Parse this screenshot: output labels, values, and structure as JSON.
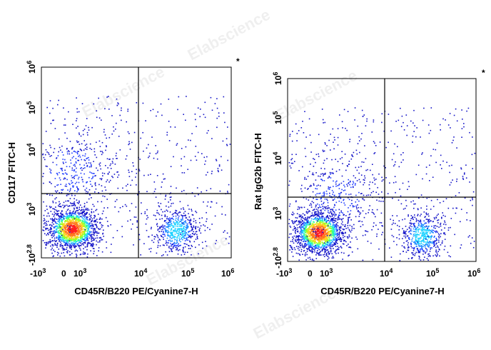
{
  "watermark": "Elabscience",
  "chart_data": [
    {
      "type": "scatter",
      "plot_style": "pseudocolor density dot plot (flow cytometry)",
      "title": "",
      "xlabel": "CD45R/B220 PE/Cyanine7-H",
      "ylabel": "CD117 FITC-H",
      "x_scale": "biexponential",
      "y_scale": "biexponential",
      "x_ticks": [
        {
          "base": "-10",
          "exp": "3",
          "value": -1000
        },
        {
          "base": "0",
          "exp": "",
          "value": 0
        },
        {
          "base": "10",
          "exp": "3",
          "value": 1000
        },
        {
          "base": "10",
          "exp": "4",
          "value": 10000
        },
        {
          "base": "10",
          "exp": "5",
          "value": 100000
        },
        {
          "base": "10",
          "exp": "6",
          "value": 1000000
        }
      ],
      "y_ticks": [
        {
          "base": "-10",
          "exp": "2.8",
          "value": -631
        },
        {
          "base": "10",
          "exp": "3",
          "value": 1000
        },
        {
          "base": "10",
          "exp": "4",
          "value": 10000
        },
        {
          "base": "10",
          "exp": "5",
          "value": 100000
        },
        {
          "base": "10",
          "exp": "6",
          "value": 1000000
        }
      ],
      "quadrant_gate": {
        "x": 8000,
        "y": 2000
      },
      "populations": [
        {
          "name": "B220- CD117- main",
          "center": [
            500,
            500
          ],
          "level": "high"
        },
        {
          "name": "B220+ CD117- ",
          "center": [
            60000,
            450
          ],
          "level": "medium"
        },
        {
          "name": "B220- CD117+ ",
          "center": [
            500,
            5000
          ],
          "level": "low"
        }
      ],
      "marker": "*"
    },
    {
      "type": "scatter",
      "plot_style": "pseudocolor density dot plot (flow cytometry)",
      "title": "",
      "xlabel": "CD45R/B220 PE/Cyanine7-H",
      "ylabel": "Rat IgG2b FITC-H",
      "x_scale": "biexponential",
      "y_scale": "biexponential",
      "x_ticks": [
        {
          "base": "-10",
          "exp": "3",
          "value": -1000
        },
        {
          "base": "0",
          "exp": "",
          "value": 0
        },
        {
          "base": "10",
          "exp": "3",
          "value": 1000
        },
        {
          "base": "10",
          "exp": "4",
          "value": 10000
        },
        {
          "base": "10",
          "exp": "5",
          "value": 100000
        },
        {
          "base": "10",
          "exp": "6",
          "value": 1000000
        }
      ],
      "y_ticks": [
        {
          "base": "-10",
          "exp": "2.8",
          "value": -631
        },
        {
          "base": "10",
          "exp": "3",
          "value": 1000
        },
        {
          "base": "10",
          "exp": "4",
          "value": 10000
        },
        {
          "base": "10",
          "exp": "5",
          "value": 100000
        },
        {
          "base": "10",
          "exp": "6",
          "value": 1000000
        }
      ],
      "quadrant_gate": {
        "x": 8000,
        "y": 2000
      },
      "populations": [
        {
          "name": "B220- isotype main",
          "center": [
            500,
            500
          ],
          "level": "high"
        },
        {
          "name": "B220+ isotype",
          "center": [
            60000,
            400
          ],
          "level": "medium"
        },
        {
          "name": "upper tail",
          "center": [
            1500,
            2500
          ],
          "level": "low"
        }
      ],
      "marker": "*"
    }
  ]
}
